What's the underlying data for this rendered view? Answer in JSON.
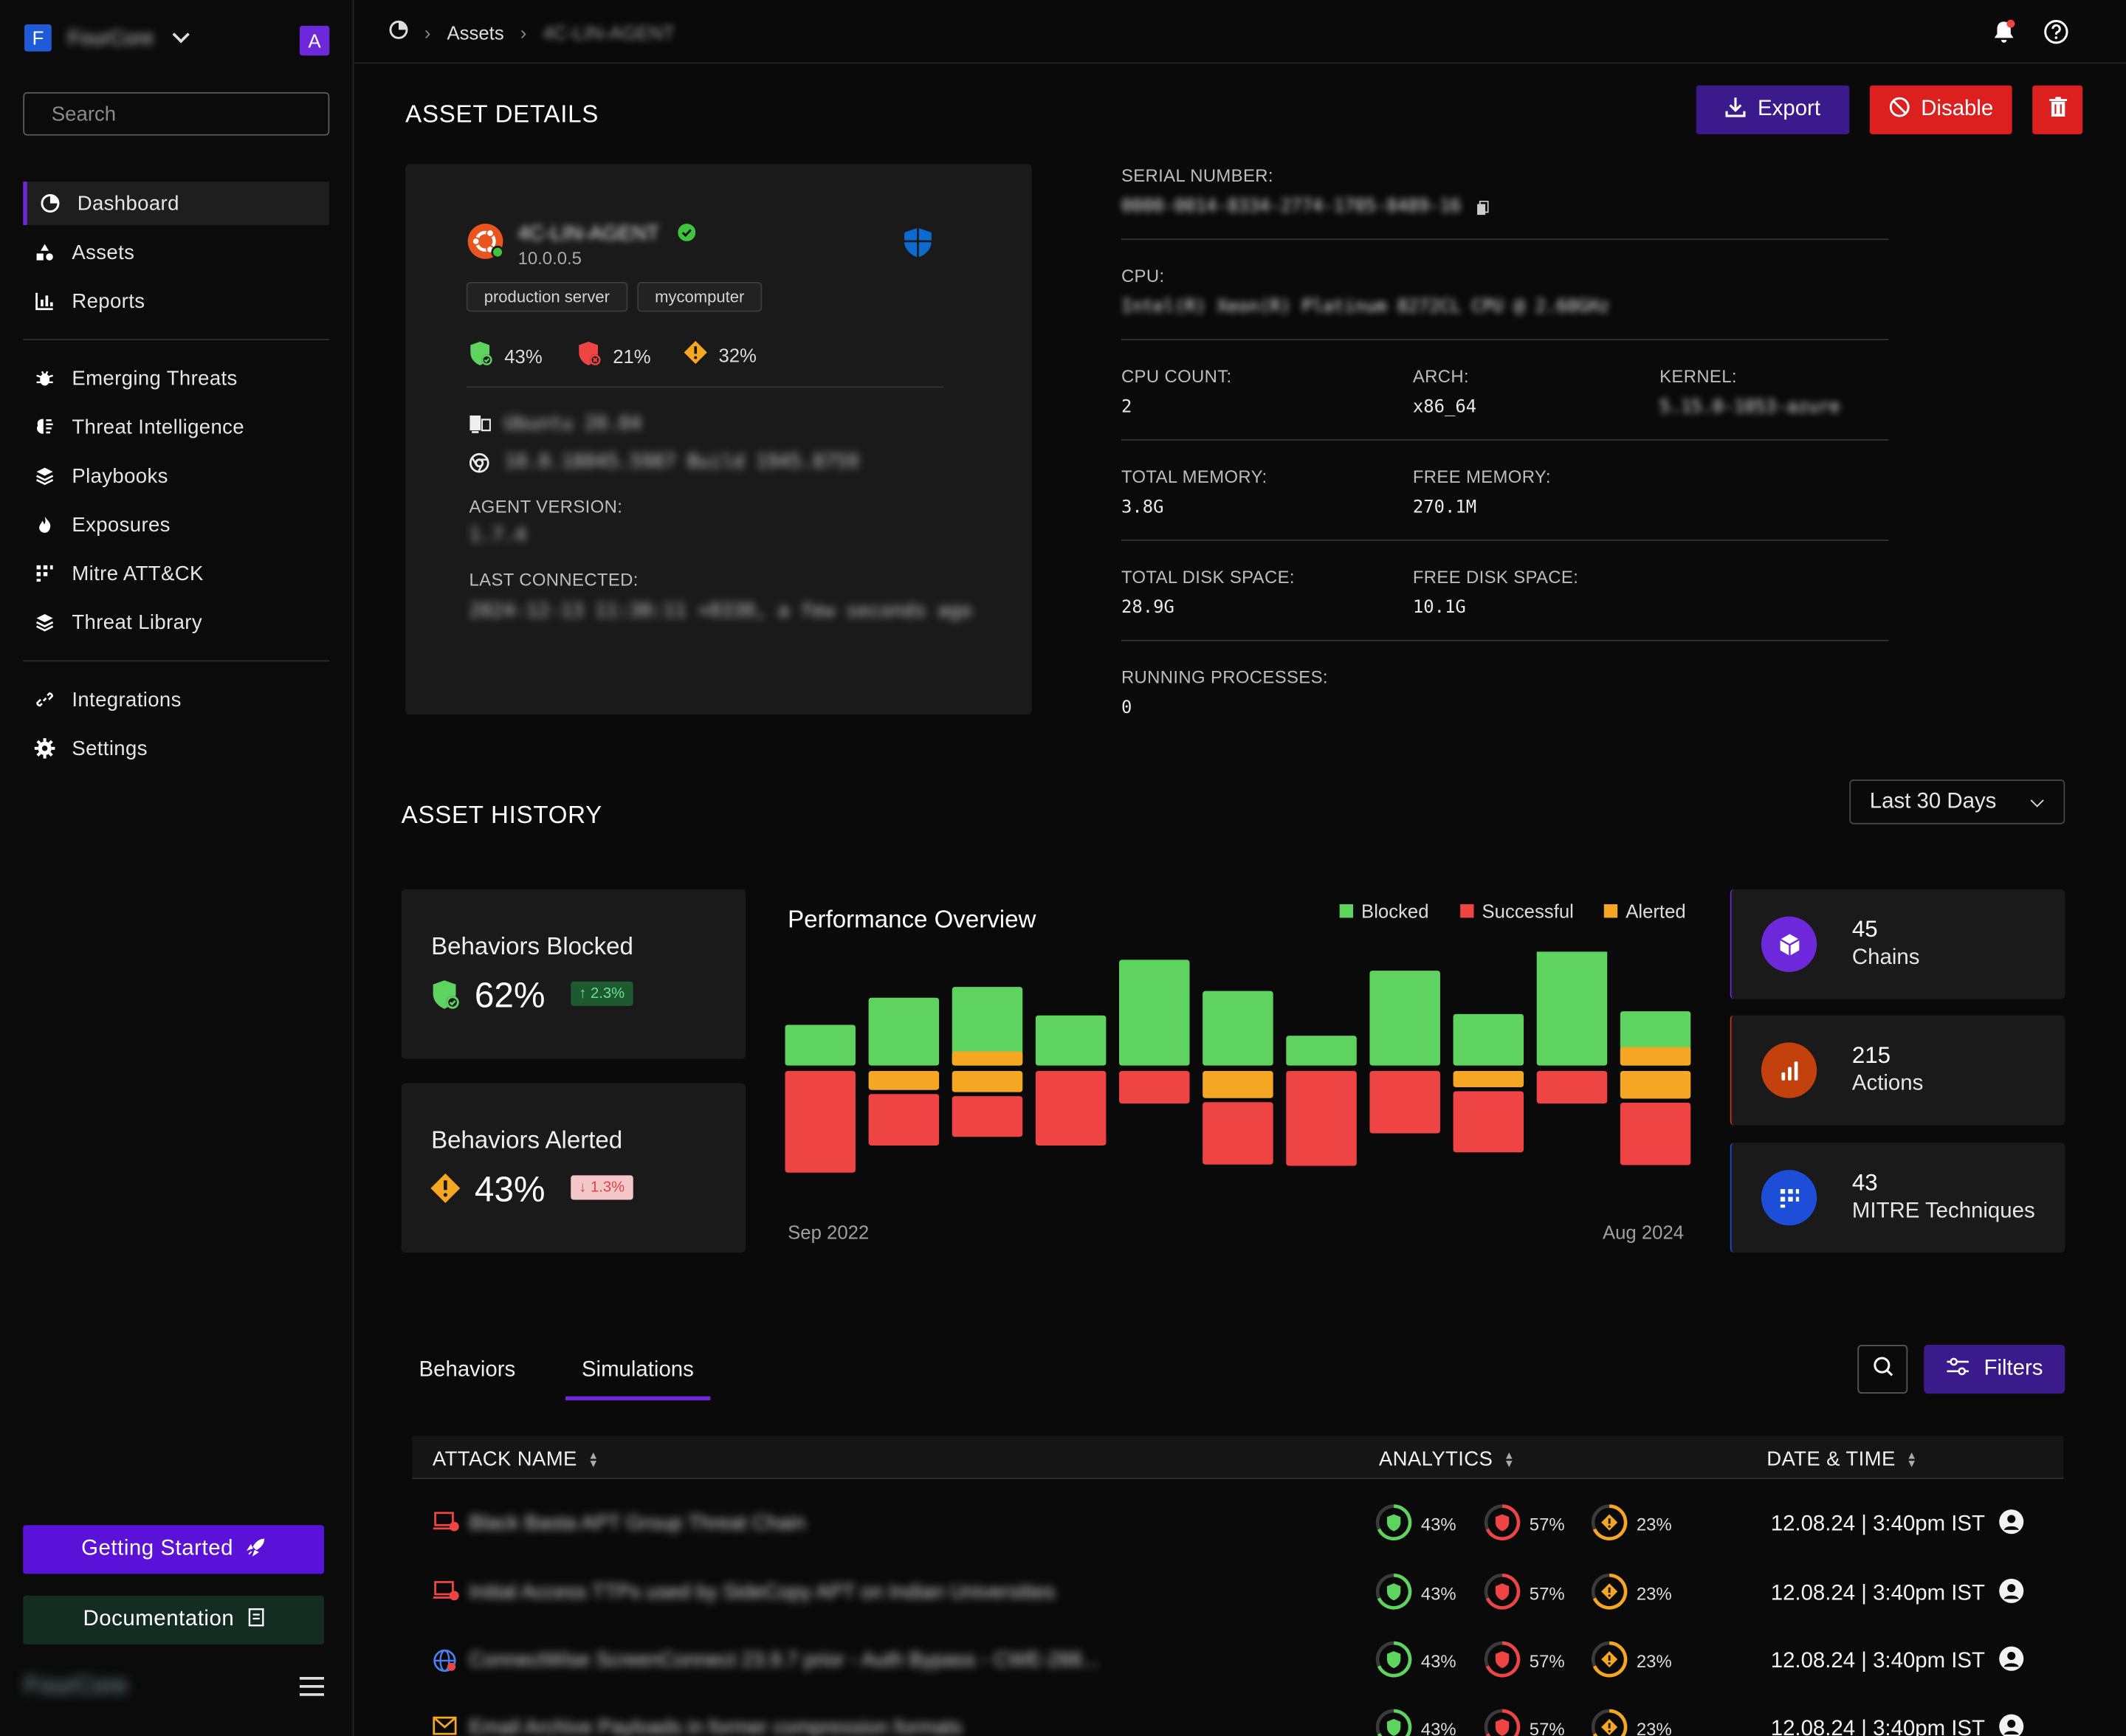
{
  "org": {
    "logo_letter": "F",
    "name": "FourCore",
    "avatar_letter": "A"
  },
  "search": {
    "placeholder": "Search"
  },
  "nav": {
    "primary": [
      {
        "label": "Dashboard",
        "icon": "pie-chart-icon",
        "active": true
      },
      {
        "label": "Assets",
        "icon": "shapes-icon"
      },
      {
        "label": "Reports",
        "icon": "bar-chart-icon"
      }
    ],
    "threats": [
      {
        "label": "Emerging Threats",
        "icon": "bug-icon"
      },
      {
        "label": "Threat Intelligence",
        "icon": "brain-icon"
      },
      {
        "label": "Playbooks",
        "icon": "layers-icon"
      },
      {
        "label": "Exposures",
        "icon": "flame-icon"
      },
      {
        "label": "Mitre ATT&CK",
        "icon": "matrix-icon"
      },
      {
        "label": "Threat Library",
        "icon": "layers-icon"
      }
    ],
    "settings": [
      {
        "label": "Integrations",
        "icon": "link-icon"
      },
      {
        "label": "Settings",
        "icon": "gear-icon"
      }
    ]
  },
  "footer": {
    "getting_started": "Getting Started",
    "documentation": "Documentation",
    "brand": "FourCore"
  },
  "breadcrumb": {
    "root_icon": "pie-chart-icon",
    "assets": "Assets",
    "current": "4C-LIN-AGENT"
  },
  "header": {
    "title": "ASSET DETAILS",
    "export": "Export",
    "disable": "Disable"
  },
  "agent": {
    "name": "4C-LIN-AGENT",
    "ip": "10.0.0.5",
    "tags": [
      "production server",
      "mycomputer"
    ],
    "stats": {
      "blocked": "43%",
      "successful": "21%",
      "alerted": "32%"
    },
    "os": "Ubuntu 20.04",
    "build": "10.0.18045.5987 Build 1945.8759",
    "agent_version_label": "AGENT VERSION:",
    "agent_version": "1.7.4",
    "last_connected_label": "LAST CONNECTED:",
    "last_connected": "2024-12-13 11:30:11 +0330, a few seconds ago"
  },
  "specs": {
    "serial_label": "SERIAL NUMBER:",
    "serial": "0000-0014-8334-2774-1705-8489-16",
    "cpu_label": "CPU:",
    "cpu": "Intel(R) Xeon(R) Platinum 8272CL CPU @ 2.60GHz",
    "cpu_count_label": "CPU COUNT:",
    "cpu_count": "2",
    "arch_label": "ARCH:",
    "arch": "x86_64",
    "kernel_label": "KERNEL:",
    "kernel": "5.15.0-1053-azure",
    "total_memory_label": "TOTAL MEMORY:",
    "total_memory": "3.8G",
    "free_memory_label": "FREE MEMORY:",
    "free_memory": "270.1M",
    "total_disk_label": "TOTAL DISK SPACE:",
    "total_disk": "28.9G",
    "free_disk_label": "FREE DISK SPACE:",
    "free_disk": "10.1G",
    "processes_label": "RUNNING PROCESSES:",
    "processes": "0"
  },
  "history": {
    "title": "ASSET HISTORY",
    "range": "Last 30 Days"
  },
  "kpis": {
    "blocked": {
      "title": "Behaviors Blocked",
      "value": "62%",
      "delta": "↑ 2.3%"
    },
    "alerted": {
      "title": "Behaviors Alerted",
      "value": "43%",
      "delta": "↓ 1.3%"
    }
  },
  "chart_data": {
    "type": "bar",
    "title": "Performance Overview",
    "x_start_label": "Sep 2022",
    "x_end_label": "Aug 2024",
    "series": [
      {
        "name": "Blocked",
        "color": "#5fd35f",
        "values": [
          30,
          50,
          58,
          37,
          78,
          55,
          22,
          70,
          38,
          88,
          40
        ]
      },
      {
        "name": "Alerted",
        "color": "#f5a623",
        "values": [
          0,
          14,
          26,
          0,
          0,
          20,
          0,
          0,
          12,
          0,
          34
        ]
      },
      {
        "name": "Successful",
        "color": "#ee4444",
        "values": [
          75,
          38,
          30,
          55,
          24,
          46,
          70,
          46,
          45,
          24,
          46
        ]
      }
    ],
    "legend": [
      "Blocked",
      "Successful",
      "Alerted"
    ]
  },
  "side_stats": [
    {
      "value": "45",
      "label": "Chains",
      "icon": "cube-icon",
      "color": "#6d28d9"
    },
    {
      "value": "215",
      "label": "Actions",
      "icon": "bars-icon",
      "color": "#c2410c"
    },
    {
      "value": "43",
      "label": "MITRE Techniques",
      "icon": "matrix-icon",
      "color": "#1d4ed8"
    }
  ],
  "tabs": {
    "behaviors": "Behaviors",
    "simulations": "Simulations",
    "filters": "Filters"
  },
  "table": {
    "headers": {
      "name": "ATTACK NAME",
      "analytics": "ANALYTICS",
      "date": "DATE & TIME"
    },
    "rows": [
      {
        "name": "Black Basta APT Group Threat Chain",
        "icon": "laptop-alert-icon",
        "blocked": "43%",
        "successful": "57%",
        "alerted": "23%",
        "date": "12.08.24 | 3:40pm IST"
      },
      {
        "name": "Initial Access TTPs used by SideCopy APT on Indian Universities",
        "icon": "laptop-alert-icon",
        "blocked": "43%",
        "successful": "57%",
        "alerted": "23%",
        "date": "12.08.24 | 3:40pm IST"
      },
      {
        "name": "ConnectWise ScreenConnect 23.9.7 prior - Auth Bypass - CWE-288...",
        "icon": "globe-icon",
        "blocked": "43%",
        "successful": "57%",
        "alerted": "23%",
        "date": "12.08.24 | 3:40pm IST"
      },
      {
        "name": "Email Archive Payloads in former compression formats",
        "icon": "mail-icon",
        "blocked": "43%",
        "successful": "57%",
        "alerted": "23%",
        "date": "12.08.24 | 3:40pm IST"
      }
    ]
  }
}
